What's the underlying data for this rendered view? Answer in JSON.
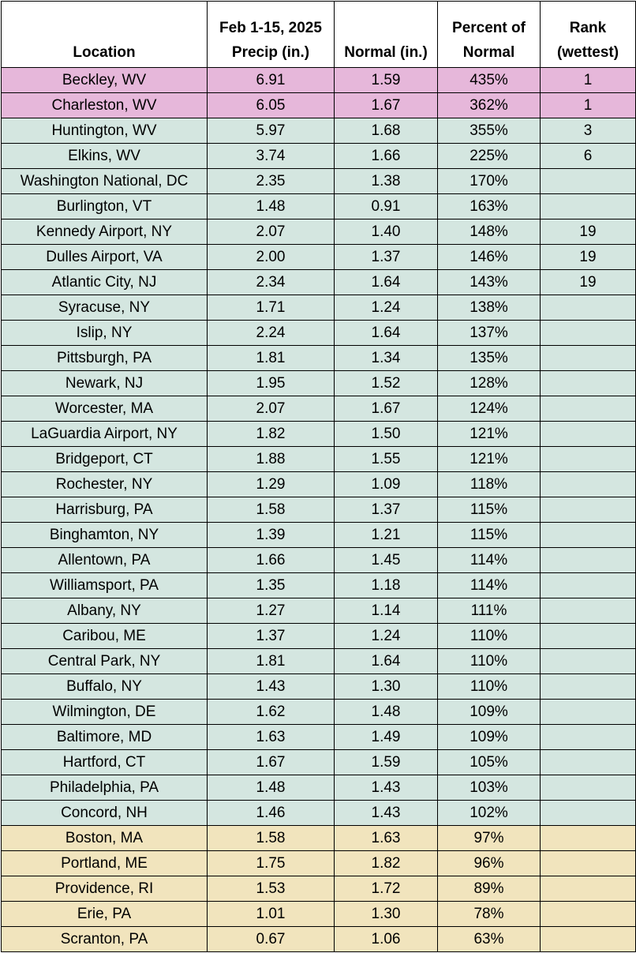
{
  "header": {
    "location": "Location",
    "precip_line1": "Feb 1-15, 2025",
    "precip_line2": "Precip (in.)",
    "normal": "Normal (in.)",
    "percent_line1": "Percent of",
    "percent_line2": "Normal",
    "rank_line1": "Rank",
    "rank_line2": "(wettest)"
  },
  "colors": {
    "record": "#e6b7da",
    "above": "#d4e6e0",
    "below": "#f1e4bd"
  },
  "rows": [
    {
      "location": "Beckley, WV",
      "precip": "6.91",
      "normal": "1.59",
      "percent": "435%",
      "rank": "1",
      "category": "record"
    },
    {
      "location": "Charleston, WV",
      "precip": "6.05",
      "normal": "1.67",
      "percent": "362%",
      "rank": "1",
      "category": "record"
    },
    {
      "location": "Huntington, WV",
      "precip": "5.97",
      "normal": "1.68",
      "percent": "355%",
      "rank": "3",
      "category": "above"
    },
    {
      "location": "Elkins, WV",
      "precip": "3.74",
      "normal": "1.66",
      "percent": "225%",
      "rank": "6",
      "category": "above"
    },
    {
      "location": "Washington National, DC",
      "precip": "2.35",
      "normal": "1.38",
      "percent": "170%",
      "rank": "",
      "category": "above"
    },
    {
      "location": "Burlington, VT",
      "precip": "1.48",
      "normal": "0.91",
      "percent": "163%",
      "rank": "",
      "category": "above"
    },
    {
      "location": "Kennedy Airport, NY",
      "precip": "2.07",
      "normal": "1.40",
      "percent": "148%",
      "rank": "19",
      "category": "above"
    },
    {
      "location": "Dulles Airport, VA",
      "precip": "2.00",
      "normal": "1.37",
      "percent": "146%",
      "rank": "19",
      "category": "above"
    },
    {
      "location": "Atlantic City, NJ",
      "precip": "2.34",
      "normal": "1.64",
      "percent": "143%",
      "rank": "19",
      "category": "above"
    },
    {
      "location": "Syracuse, NY",
      "precip": "1.71",
      "normal": "1.24",
      "percent": "138%",
      "rank": "",
      "category": "above"
    },
    {
      "location": "Islip, NY",
      "precip": "2.24",
      "normal": "1.64",
      "percent": "137%",
      "rank": "",
      "category": "above"
    },
    {
      "location": "Pittsburgh, PA",
      "precip": "1.81",
      "normal": "1.34",
      "percent": "135%",
      "rank": "",
      "category": "above"
    },
    {
      "location": "Newark, NJ",
      "precip": "1.95",
      "normal": "1.52",
      "percent": "128%",
      "rank": "",
      "category": "above"
    },
    {
      "location": "Worcester, MA",
      "precip": "2.07",
      "normal": "1.67",
      "percent": "124%",
      "rank": "",
      "category": "above"
    },
    {
      "location": "LaGuardia Airport, NY",
      "precip": "1.82",
      "normal": "1.50",
      "percent": "121%",
      "rank": "",
      "category": "above"
    },
    {
      "location": "Bridgeport, CT",
      "precip": "1.88",
      "normal": "1.55",
      "percent": "121%",
      "rank": "",
      "category": "above"
    },
    {
      "location": "Rochester, NY",
      "precip": "1.29",
      "normal": "1.09",
      "percent": "118%",
      "rank": "",
      "category": "above"
    },
    {
      "location": "Harrisburg, PA",
      "precip": "1.58",
      "normal": "1.37",
      "percent": "115%",
      "rank": "",
      "category": "above"
    },
    {
      "location": "Binghamton, NY",
      "precip": "1.39",
      "normal": "1.21",
      "percent": "115%",
      "rank": "",
      "category": "above"
    },
    {
      "location": "Allentown, PA",
      "precip": "1.66",
      "normal": "1.45",
      "percent": "114%",
      "rank": "",
      "category": "above"
    },
    {
      "location": "Williamsport, PA",
      "precip": "1.35",
      "normal": "1.18",
      "percent": "114%",
      "rank": "",
      "category": "above"
    },
    {
      "location": "Albany, NY",
      "precip": "1.27",
      "normal": "1.14",
      "percent": "111%",
      "rank": "",
      "category": "above"
    },
    {
      "location": "Caribou, ME",
      "precip": "1.37",
      "normal": "1.24",
      "percent": "110%",
      "rank": "",
      "category": "above"
    },
    {
      "location": "Central Park, NY",
      "precip": "1.81",
      "normal": "1.64",
      "percent": "110%",
      "rank": "",
      "category": "above"
    },
    {
      "location": "Buffalo, NY",
      "precip": "1.43",
      "normal": "1.30",
      "percent": "110%",
      "rank": "",
      "category": "above"
    },
    {
      "location": "Wilmington, DE",
      "precip": "1.62",
      "normal": "1.48",
      "percent": "109%",
      "rank": "",
      "category": "above"
    },
    {
      "location": "Baltimore, MD",
      "precip": "1.63",
      "normal": "1.49",
      "percent": "109%",
      "rank": "",
      "category": "above"
    },
    {
      "location": "Hartford, CT",
      "precip": "1.67",
      "normal": "1.59",
      "percent": "105%",
      "rank": "",
      "category": "above"
    },
    {
      "location": "Philadelphia, PA",
      "precip": "1.48",
      "normal": "1.43",
      "percent": "103%",
      "rank": "",
      "category": "above"
    },
    {
      "location": "Concord, NH",
      "precip": "1.46",
      "normal": "1.43",
      "percent": "102%",
      "rank": "",
      "category": "above"
    },
    {
      "location": "Boston, MA",
      "precip": "1.58",
      "normal": "1.63",
      "percent": "97%",
      "rank": "",
      "category": "below"
    },
    {
      "location": "Portland, ME",
      "precip": "1.75",
      "normal": "1.82",
      "percent": "96%",
      "rank": "",
      "category": "below"
    },
    {
      "location": "Providence, RI",
      "precip": "1.53",
      "normal": "1.72",
      "percent": "89%",
      "rank": "",
      "category": "below"
    },
    {
      "location": "Erie, PA",
      "precip": "1.01",
      "normal": "1.30",
      "percent": "78%",
      "rank": "",
      "category": "below"
    },
    {
      "location": "Scranton, PA",
      "precip": "0.67",
      "normal": "1.06",
      "percent": "63%",
      "rank": "",
      "category": "below"
    }
  ]
}
